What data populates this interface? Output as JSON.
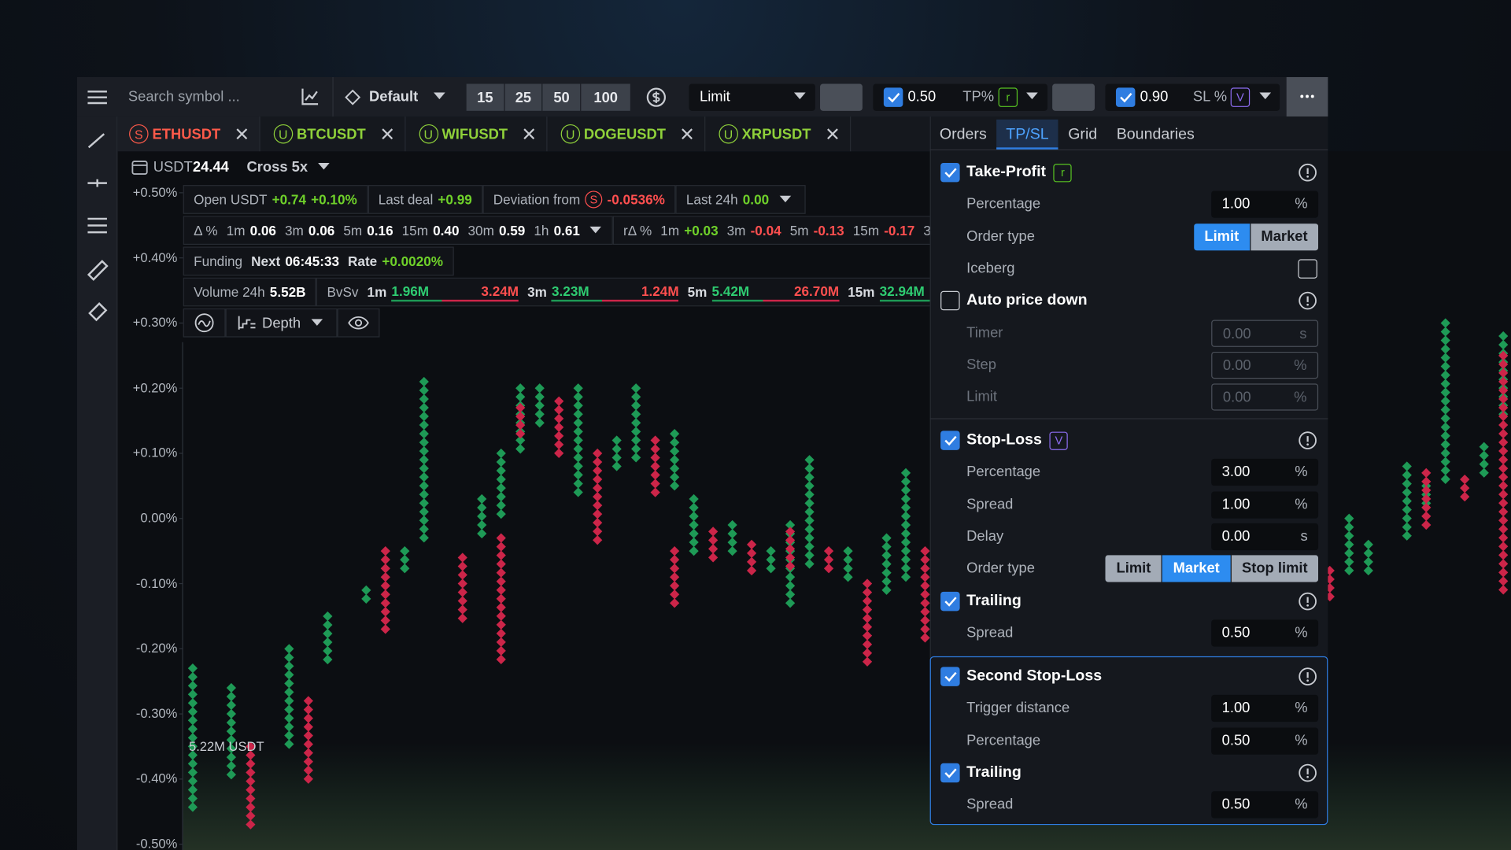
{
  "toolbar": {
    "search_placeholder": "Search symbol ...",
    "preset": "Default",
    "quantities": [
      "15",
      "25",
      "50",
      "100"
    ],
    "order_type": "Limit",
    "tp": {
      "value": "0.50",
      "label": "TP%",
      "badge": "r"
    },
    "sl": {
      "value": "0.90",
      "label": "SL %",
      "badge": "V"
    }
  },
  "tabs": [
    {
      "badge": "S",
      "label": "ETHUSDT"
    },
    {
      "badge": "U",
      "label": "BTCUSDT"
    },
    {
      "badge": "U",
      "label": "WIFUSDT"
    },
    {
      "badge": "U",
      "label": "DOGEUSDT"
    },
    {
      "badge": "U",
      "label": "XRPUSDT"
    }
  ],
  "account": {
    "currency": "USDT",
    "balance": "24.44",
    "margin": "Cross 5x"
  },
  "stats": {
    "open": {
      "label": "Open USDT",
      "value": "+0.74",
      "percent": "+0.10%"
    },
    "last_deal": {
      "label": "Last deal",
      "value": "+0.99"
    },
    "deviation": {
      "label": "Deviation from",
      "badge": "S",
      "value": "-0.0536%"
    },
    "last_24h": {
      "label": "Last 24h",
      "value": "0.00"
    },
    "delta": {
      "label": "Δ %",
      "items": [
        {
          "label": "1m",
          "value": "0.06"
        },
        {
          "label": "3m",
          "value": "0.06"
        },
        {
          "label": "5m",
          "value": "0.16"
        },
        {
          "label": "15m",
          "value": "0.40"
        },
        {
          "label": "30m",
          "value": "0.59"
        },
        {
          "label": "1h",
          "value": "0.61"
        }
      ]
    },
    "r_delta": {
      "label": "rΔ %",
      "items": [
        {
          "label": "1m",
          "value": "+0.03"
        },
        {
          "label": "3m",
          "value": "-0.04"
        },
        {
          "label": "5m",
          "value": "-0.13"
        },
        {
          "label": "15m",
          "value": "-0.17"
        },
        {
          "label": "30m",
          "value": "-"
        }
      ]
    },
    "funding": {
      "label": "Funding",
      "next_label": "Next",
      "next": "06:45:33",
      "rate_label": "Rate",
      "rate": "+0.0020%"
    },
    "volume": {
      "label": "Volume 24h",
      "value": "5.52B"
    },
    "bvsv": {
      "label": "BvSv",
      "items": [
        {
          "label": "1m",
          "buy": "1.96M",
          "sell": "3.24M"
        },
        {
          "label": "3m",
          "buy": "3.23M",
          "sell": "1.24M"
        },
        {
          "label": "5m",
          "buy": "5.42M",
          "sell": "26.70M"
        },
        {
          "label": "15m",
          "buy": "32.94M"
        }
      ]
    },
    "depth": "Depth"
  },
  "chart_data": {
    "type": "dot",
    "volume_label": "5.22M USDT",
    "ylim": [
      -0.5,
      0.5
    ],
    "yticks": [
      {
        "value": 0.5,
        "label": "+0.50%"
      },
      {
        "value": 0.4,
        "label": "+0.40%"
      },
      {
        "value": 0.3,
        "label": "+0.30%"
      },
      {
        "value": 0.2,
        "label": "+0.20%"
      },
      {
        "value": 0.1,
        "label": "+0.10%"
      },
      {
        "value": 0,
        "label": "0.00%"
      },
      {
        "value": -0.1,
        "label": "-0.10%"
      },
      {
        "value": -0.2,
        "label": "-0.20%"
      },
      {
        "value": -0.3,
        "label": "-0.30%"
      },
      {
        "value": -0.4,
        "label": "-0.40%"
      },
      {
        "value": -0.5,
        "label": "-0.50%"
      }
    ],
    "series": [
      {
        "color": "#1e9a56",
        "values": [
          [
            -0.45,
            -0.23
          ],
          null,
          [
            -0.4,
            -0.26
          ],
          null,
          null,
          [
            -0.35,
            -0.2
          ],
          null,
          [
            -0.22,
            -0.15
          ],
          null,
          [
            -0.13,
            -0.11
          ],
          null,
          [
            -0.08,
            -0.05
          ],
          [
            -0.03,
            0.21
          ],
          null,
          null,
          [
            -0.03,
            0.03
          ],
          [
            0.0,
            0.1
          ],
          [
            0.1,
            0.2
          ],
          [
            0.14,
            0.2
          ],
          null,
          [
            0.03,
            0.2
          ],
          null,
          [
            0.08,
            0.12
          ],
          [
            0.09,
            0.2
          ],
          null,
          [
            0.05,
            0.13
          ],
          [
            -0.05,
            0.03
          ],
          null,
          [
            -0.05,
            -0.01
          ],
          null,
          [
            -0.08,
            -0.05
          ],
          [
            -0.14,
            -0.01
          ],
          [
            -0.07,
            0.09
          ],
          null,
          [
            -0.09,
            -0.05
          ],
          null,
          [
            -0.12,
            -0.03
          ],
          [
            -0.1,
            0.07
          ],
          null,
          null,
          null,
          null,
          null,
          null,
          null,
          null,
          null,
          null,
          null,
          null,
          null,
          null,
          null,
          null,
          null,
          null,
          null,
          null,
          null,
          null,
          [
            -0.08,
            0.0
          ],
          [
            -0.09,
            -0.04
          ],
          null,
          [
            -0.03,
            0.08
          ],
          [
            0.02,
            0.05
          ],
          [
            0.05,
            0.3
          ],
          null,
          [
            0.06,
            0.11
          ],
          [
            0.15,
            0.28
          ]
        ]
      },
      {
        "color": "#cc2549",
        "values": [
          null,
          null,
          null,
          [
            -0.47,
            -0.35
          ],
          null,
          null,
          [
            -0.4,
            -0.28
          ],
          null,
          null,
          null,
          [
            -0.17,
            -0.05
          ],
          null,
          null,
          null,
          [
            -0.16,
            -0.06
          ],
          null,
          [
            -0.22,
            -0.03
          ],
          [
            0.13,
            0.17
          ],
          null,
          [
            0.09,
            0.18
          ],
          null,
          [
            -0.04,
            0.1
          ],
          null,
          null,
          [
            0.03,
            0.12
          ],
          [
            -0.14,
            -0.05
          ],
          null,
          [
            -0.06,
            -0.02
          ],
          null,
          [
            -0.09,
            -0.04
          ],
          null,
          [
            -0.08,
            -0.02
          ],
          null,
          [
            -0.08,
            -0.05
          ],
          null,
          [
            -0.23,
            -0.1
          ],
          null,
          null,
          [
            -0.19,
            -0.05
          ],
          null,
          null,
          null,
          null,
          null,
          null,
          null,
          null,
          null,
          null,
          null,
          null,
          null,
          null,
          null,
          null,
          null,
          null,
          null,
          null,
          [
            -0.12,
            -0.08
          ],
          null,
          null,
          null,
          null,
          [
            -0.02,
            0.07
          ],
          null,
          [
            0.03,
            0.06
          ],
          null,
          [
            -0.12,
            0.25
          ]
        ]
      }
    ]
  },
  "panel": {
    "tabs": [
      "Orders",
      "TP/SL",
      "Grid",
      "Boundaries"
    ],
    "active_tab": 1,
    "sections": [
      {
        "items": [
          {
            "kind": "header",
            "title": "Take-Profit",
            "checked": true,
            "badge": "r",
            "badge_color": "#58c322"
          },
          {
            "kind": "field",
            "label": "Percentage",
            "value": "1.00",
            "unit": "%"
          },
          {
            "kind": "options",
            "label": "Order type",
            "options": [
              "Limit",
              "Market"
            ],
            "active": 0
          },
          {
            "kind": "toggle",
            "label": "Iceberg",
            "checked": false
          },
          {
            "kind": "header",
            "title": "Auto price down",
            "checked": false
          },
          {
            "kind": "field",
            "label": "Timer",
            "value": "0.00",
            "unit": "s",
            "disabled": true
          },
          {
            "kind": "field",
            "label": "Step",
            "value": "0.00",
            "unit": "%",
            "disabled": true
          },
          {
            "kind": "field",
            "label": "Limit",
            "value": "0.00",
            "unit": "%",
            "disabled": true
          }
        ]
      },
      {
        "items": [
          {
            "kind": "header",
            "title": "Stop-Loss",
            "checked": true,
            "badge": "V",
            "badge_color": "#8c6cf0"
          },
          {
            "kind": "field",
            "label": "Percentage",
            "value": "3.00",
            "unit": "%"
          },
          {
            "kind": "field",
            "label": "Spread",
            "value": "1.00",
            "unit": "%"
          },
          {
            "kind": "field",
            "label": "Delay",
            "value": "0.00",
            "unit": "s"
          },
          {
            "kind": "options",
            "label": "Order type",
            "options": [
              "Limit",
              "Market",
              "Stop limit"
            ],
            "active": 1
          },
          {
            "kind": "header",
            "title": "Trailing",
            "checked": true
          },
          {
            "kind": "field",
            "label": "Spread",
            "value": "0.50",
            "unit": "%"
          }
        ]
      },
      {
        "highlight": true,
        "items": [
          {
            "kind": "header",
            "title": "Second Stop-Loss",
            "checked": true
          },
          {
            "kind": "field",
            "label": "Trigger distance",
            "value": "1.00",
            "unit": "%"
          },
          {
            "kind": "field",
            "label": "Percentage",
            "value": "0.50",
            "unit": "%"
          },
          {
            "kind": "header",
            "title": "Trailing",
            "checked": true
          },
          {
            "kind": "field",
            "label": "Spread",
            "value": "0.50",
            "unit": "%"
          }
        ]
      }
    ]
  }
}
